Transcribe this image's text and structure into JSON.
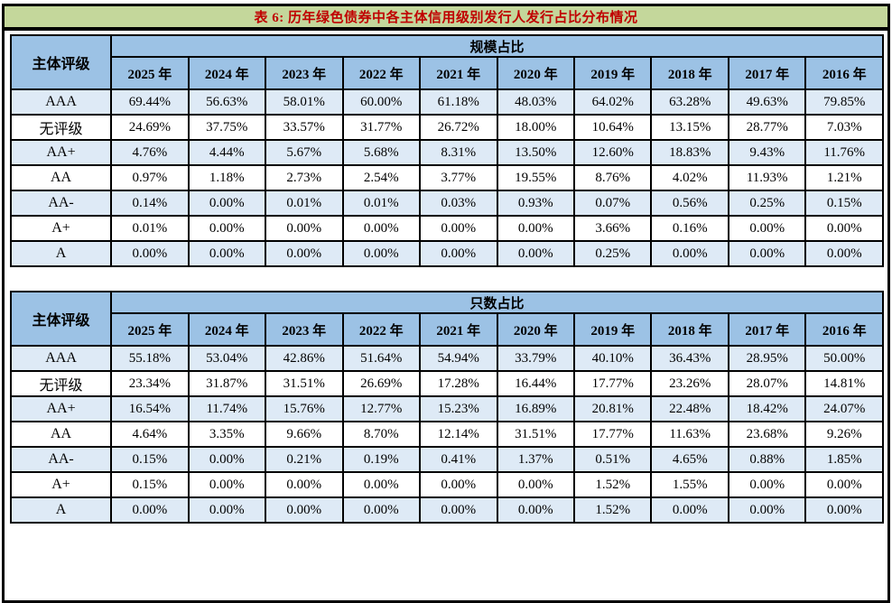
{
  "title": "表 6:  历年绿色债券中各主体信用级别发行人发行占比分布情况",
  "colors": {
    "title_bg": "#C4D79B",
    "title_text": "#C00000",
    "header_bg": "#9CC2E5",
    "row_alt_bg": "#DEEAF6",
    "border": "#000000"
  },
  "tables": [
    {
      "corner_label": "主体评级",
      "group_label": "规模占比",
      "years": [
        "2025 年",
        "2024 年",
        "2023 年",
        "2022 年",
        "2021 年",
        "2020 年",
        "2019 年",
        "2018 年",
        "2017 年",
        "2016 年"
      ],
      "rows": [
        {
          "label": "AAA",
          "values": [
            "69.44%",
            "56.63%",
            "58.01%",
            "60.00%",
            "61.18%",
            "48.03%",
            "64.02%",
            "63.28%",
            "49.63%",
            "79.85%"
          ]
        },
        {
          "label": "无评级",
          "values": [
            "24.69%",
            "37.75%",
            "33.57%",
            "31.77%",
            "26.72%",
            "18.00%",
            "10.64%",
            "13.15%",
            "28.77%",
            "7.03%"
          ]
        },
        {
          "label": "AA+",
          "values": [
            "4.76%",
            "4.44%",
            "5.67%",
            "5.68%",
            "8.31%",
            "13.50%",
            "12.60%",
            "18.83%",
            "9.43%",
            "11.76%"
          ]
        },
        {
          "label": "AA",
          "values": [
            "0.97%",
            "1.18%",
            "2.73%",
            "2.54%",
            "3.77%",
            "19.55%",
            "8.76%",
            "4.02%",
            "11.93%",
            "1.21%"
          ]
        },
        {
          "label": "AA-",
          "values": [
            "0.14%",
            "0.00%",
            "0.01%",
            "0.01%",
            "0.03%",
            "0.93%",
            "0.07%",
            "0.56%",
            "0.25%",
            "0.15%"
          ]
        },
        {
          "label": "A+",
          "values": [
            "0.01%",
            "0.00%",
            "0.00%",
            "0.00%",
            "0.00%",
            "0.00%",
            "3.66%",
            "0.16%",
            "0.00%",
            "0.00%"
          ]
        },
        {
          "label": "A",
          "values": [
            "0.00%",
            "0.00%",
            "0.00%",
            "0.00%",
            "0.00%",
            "0.00%",
            "0.25%",
            "0.00%",
            "0.00%",
            "0.00%"
          ]
        }
      ]
    },
    {
      "corner_label": "主体评级",
      "group_label": "只数占比",
      "years": [
        "2025 年",
        "2024 年",
        "2023 年",
        "2022 年",
        "2021 年",
        "2020 年",
        "2019 年",
        "2018 年",
        "2017 年",
        "2016 年"
      ],
      "rows": [
        {
          "label": "AAA",
          "values": [
            "55.18%",
            "53.04%",
            "42.86%",
            "51.64%",
            "54.94%",
            "33.79%",
            "40.10%",
            "36.43%",
            "28.95%",
            "50.00%"
          ]
        },
        {
          "label": "无评级",
          "values": [
            "23.34%",
            "31.87%",
            "31.51%",
            "26.69%",
            "17.28%",
            "16.44%",
            "17.77%",
            "23.26%",
            "28.07%",
            "14.81%"
          ]
        },
        {
          "label": "AA+",
          "values": [
            "16.54%",
            "11.74%",
            "15.76%",
            "12.77%",
            "15.23%",
            "16.89%",
            "20.81%",
            "22.48%",
            "18.42%",
            "24.07%"
          ]
        },
        {
          "label": "AA",
          "values": [
            "4.64%",
            "3.35%",
            "9.66%",
            "8.70%",
            "12.14%",
            "31.51%",
            "17.77%",
            "11.63%",
            "23.68%",
            "9.26%"
          ]
        },
        {
          "label": "AA-",
          "values": [
            "0.15%",
            "0.00%",
            "0.21%",
            "0.19%",
            "0.41%",
            "1.37%",
            "0.51%",
            "4.65%",
            "0.88%",
            "1.85%"
          ]
        },
        {
          "label": "A+",
          "values": [
            "0.15%",
            "0.00%",
            "0.00%",
            "0.00%",
            "0.00%",
            "0.00%",
            "1.52%",
            "1.55%",
            "0.00%",
            "0.00%"
          ]
        },
        {
          "label": "A",
          "values": [
            "0.00%",
            "0.00%",
            "0.00%",
            "0.00%",
            "0.00%",
            "0.00%",
            "1.52%",
            "0.00%",
            "0.00%",
            "0.00%"
          ]
        }
      ]
    }
  ]
}
